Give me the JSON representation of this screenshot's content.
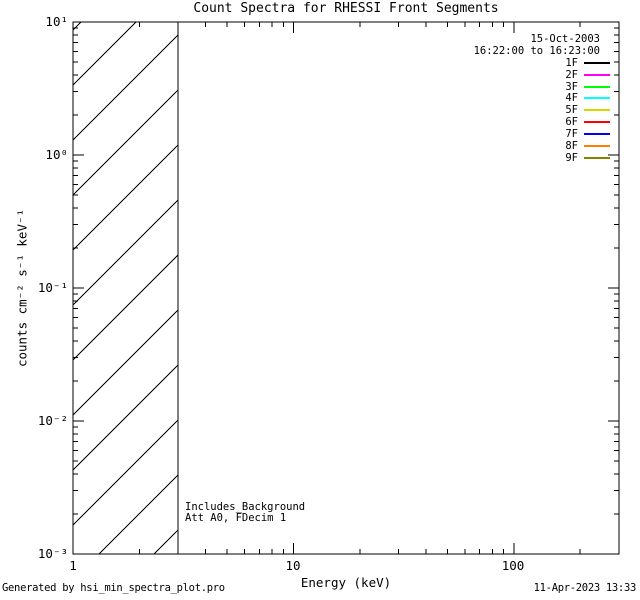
{
  "title": "Count Spectra for RHESSI Front Segments",
  "axes": {
    "xlabel": "Energy (keV)",
    "ylabel": "counts cm⁻² s⁻¹ keV⁻¹",
    "x_tick_labels": [
      "1",
      "10",
      "100"
    ],
    "y_tick_labels": [
      "10¹",
      "10⁰",
      "10⁻¹",
      "10⁻²",
      "10⁻³"
    ]
  },
  "legend": {
    "date": "15-Oct-2003",
    "time_range": "16:22:00 to 16:23:00",
    "entries": [
      {
        "label": "1F",
        "color": "#000000"
      },
      {
        "label": "2F",
        "color": "#FF00FF"
      },
      {
        "label": "3F",
        "color": "#00FF00"
      },
      {
        "label": "4F",
        "color": "#00FFFF"
      },
      {
        "label": "5F",
        "color": "#D8D800"
      },
      {
        "label": "6F",
        "color": "#FF0000"
      },
      {
        "label": "7F",
        "color": "#0000FF"
      },
      {
        "label": "8F",
        "color": "#FF8000"
      },
      {
        "label": "9F",
        "color": "#848400"
      }
    ]
  },
  "annotations": {
    "line1": "Includes_Background",
    "line2": "Att A0, FDecim 1"
  },
  "footer": {
    "generated_by": "Generated by hsi_min_spectra_plot.pro",
    "timestamp": "11-Apr-2023 13:33"
  },
  "chart_data": {
    "type": "line",
    "title": "Count Spectra for RHESSI Front Segments",
    "xlabel": "Energy (keV)",
    "ylabel": "counts cm^-2 s^-1 keV^-1",
    "xscale": "log",
    "yscale": "log",
    "xlim": [
      1,
      300
    ],
    "ylim": [
      0.001,
      10
    ],
    "x_major_ticks": [
      1,
      10,
      100
    ],
    "y_major_ticks": [
      10,
      1,
      0.1,
      0.01,
      0.001
    ],
    "grid": false,
    "legend_position": "top-right",
    "time_interval": "15-Oct-2003 16:22:00 to 16:23:00",
    "series": [
      {
        "name": "1F",
        "color": "#000000",
        "x": [],
        "y": []
      },
      {
        "name": "2F",
        "color": "#FF00FF",
        "x": [],
        "y": []
      },
      {
        "name": "3F",
        "color": "#00FF00",
        "x": [],
        "y": []
      },
      {
        "name": "4F",
        "color": "#00FFFF",
        "x": [],
        "y": []
      },
      {
        "name": "5F",
        "color": "#D8D800",
        "x": [],
        "y": []
      },
      {
        "name": "6F",
        "color": "#FF0000",
        "x": [],
        "y": []
      },
      {
        "name": "7F",
        "color": "#0000FF",
        "x": [],
        "y": []
      },
      {
        "name": "8F",
        "color": "#FF8000",
        "x": [],
        "y": []
      },
      {
        "name": "9F",
        "color": "#848400",
        "x": [],
        "y": []
      }
    ],
    "note": "No spectra curves are drawn; plot area is empty except a diagonally hatched region at low energies.",
    "hatched_region": {
      "x_min": 1,
      "x_max": 3,
      "style": "diagonal-hatch-45deg"
    },
    "annotations": [
      "Includes_Background",
      "Att A0, FDecim 1"
    ]
  }
}
